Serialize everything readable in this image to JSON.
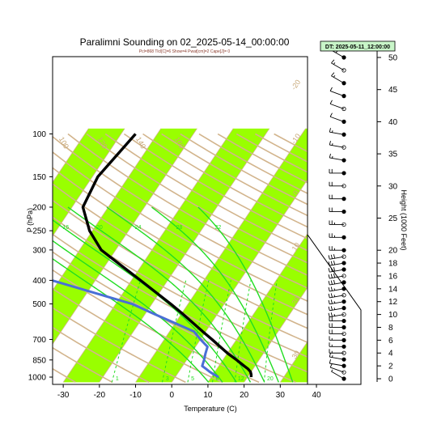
{
  "chart_data": {
    "type": "skew-t",
    "title": "Paralimni Sounding on 02_2025-05-14_00:00:00",
    "subtitle": "Pcl=868 Tlcl[C]=6 Show=4 Pwat[cm]=2 Cape[J]= 0",
    "valid_time_box": "DT: 2025-05-11_12:00:00",
    "xlabel": "Temperature (C)",
    "ylabel": "P (hPa)",
    "right_label": "Height (1000 Feet)",
    "x_ticks": [
      -30,
      -20,
      -10,
      0,
      10,
      20,
      30,
      40
    ],
    "xlim": [
      -33,
      44
    ],
    "p_ticks": [
      100,
      150,
      200,
      250,
      300,
      400,
      500,
      700,
      850,
      1000
    ],
    "plim": [
      1050,
      100
    ],
    "height_ticks_kft": [
      0,
      2,
      4,
      6,
      8,
      10,
      12,
      14,
      16,
      18,
      20,
      25,
      30,
      35,
      40,
      45,
      50
    ],
    "isotherm_band_colors": [
      "#99ff00",
      "#ffffff"
    ],
    "skew_line_color": "#d2b48c",
    "moist_adiabat_color": "#22dd22",
    "temperature_color": "#000000",
    "dewpoint_color": "#4a6fd6",
    "isotherm_labels": [
      -30,
      -20,
      -10,
      0,
      10,
      20,
      30
    ],
    "dry_adiabat_labels": [
      80,
      100,
      120,
      140,
      160
    ],
    "moist_adiabat_labels": [
      8,
      12,
      16,
      20,
      24,
      28,
      32
    ],
    "mixing_ratio_labels": [
      1,
      3,
      5,
      8,
      12,
      20
    ],
    "series": [
      {
        "p": [
          1000,
          975,
          950,
          925,
          900,
          850,
          800,
          750,
          700,
          650,
          600,
          550,
          500,
          450,
          400,
          350,
          300,
          250,
          200,
          150,
          100
        ],
        "values": [
          21,
          20.5,
          19.8,
          18.6,
          17,
          13.8,
          10.2,
          6.8,
          3.2,
          -0.8,
          -5,
          -9.6,
          -14.8,
          -20.8,
          -27.5,
          -35.2,
          -44,
          -50.8,
          -57,
          -58.5,
          -56
        ]
      },
      {
        "p": [
          1000,
          975,
          950,
          925,
          900,
          850,
          800,
          750,
          700,
          650,
          600,
          550,
          500,
          450,
          400,
          350,
          300,
          250,
          200,
          150,
          100
        ],
        "values": [
          12,
          10.2,
          8.5,
          7,
          5.4,
          4.8,
          4,
          3.3,
          0,
          -3.2,
          -10,
          -17.5,
          -25.5,
          -38,
          -52,
          -58,
          -64,
          -72,
          -82,
          -88,
          -88
        ]
      }
    ],
    "wind_barbs": {
      "heights_kft": [
        0,
        1,
        2,
        3,
        4,
        5,
        6,
        7,
        8,
        9,
        10,
        11,
        12,
        13,
        14,
        15,
        16,
        17,
        18,
        19,
        20,
        22,
        24,
        26,
        28,
        30,
        32,
        34,
        36,
        38,
        40,
        42,
        44,
        46,
        48,
        50
      ],
      "speeds_kt": [
        5,
        10,
        10,
        15,
        15,
        15,
        15,
        20,
        20,
        20,
        25,
        25,
        25,
        25,
        25,
        30,
        30,
        30,
        30,
        30,
        25,
        25,
        25,
        20,
        20,
        20,
        20,
        15,
        15,
        15,
        10,
        10,
        10,
        15,
        15,
        30
      ],
      "dirs_deg": [
        300,
        290,
        280,
        280,
        270,
        270,
        270,
        270,
        270,
        270,
        260,
        260,
        260,
        260,
        260,
        260,
        260,
        260,
        260,
        260,
        270,
        270,
        270,
        270,
        270,
        270,
        270,
        280,
        280,
        280,
        290,
        290,
        290,
        300,
        300,
        300
      ]
    }
  }
}
